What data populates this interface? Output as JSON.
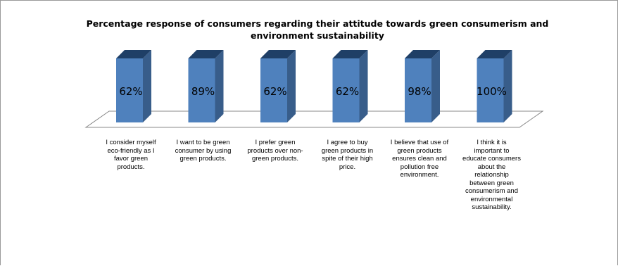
{
  "chart_data": {
    "type": "bar",
    "title": "Percentage response of consumers regarding their attitude towards green consumerism and environment sustainability",
    "categories": [
      "I consider myself eco-friendly as I favor green products.",
      "I want to be green consumer by using green products.",
      "I prefer green products over non-green products.",
      "I agree to buy green products in spite of their high price.",
      "I believe that use of green products ensures clean and pollution free environment.",
      "I think it is important to educate consumers about the relationship between green consumerism and environmental sustainability."
    ],
    "values": [
      62,
      89,
      62,
      62,
      98,
      100
    ],
    "data_labels": [
      "62%",
      "89%",
      "62%",
      "62%",
      "98%",
      "100%"
    ],
    "style": "3d-column",
    "bar_color": "#4f81bd",
    "grid": false,
    "legend": "none"
  }
}
